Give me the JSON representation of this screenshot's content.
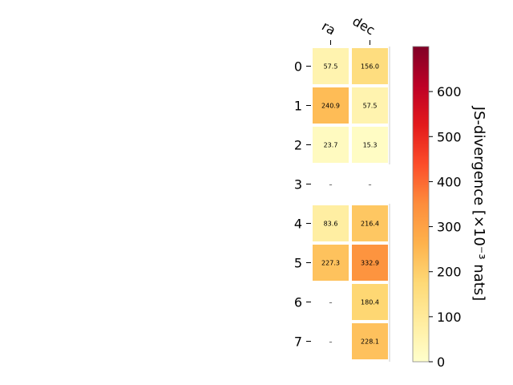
{
  "chart_data": {
    "type": "heatmap",
    "title": "",
    "columns": [
      "ra",
      "dec"
    ],
    "rows": [
      "0",
      "1",
      "2",
      "3",
      "4",
      "5",
      "6",
      "7"
    ],
    "values": [
      [
        57.5,
        156.0
      ],
      [
        240.9,
        57.5
      ],
      [
        23.7,
        15.3
      ],
      [
        null,
        null
      ],
      [
        83.6,
        216.4
      ],
      [
        227.3,
        332.9
      ],
      [
        null,
        180.4
      ],
      [
        null,
        228.1
      ]
    ],
    "cell_labels": [
      [
        "57.5",
        "156.0"
      ],
      [
        "240.9",
        "57.5"
      ],
      [
        "23.7",
        "15.3"
      ],
      [
        "–",
        "–"
      ],
      [
        "83.6",
        "216.4"
      ],
      [
        "227.3",
        "332.9"
      ],
      [
        "–",
        "180.4"
      ],
      [
        "–",
        "228.1"
      ]
    ],
    "colorbar": {
      "label": "JS-divergence [×10⁻³ nats]",
      "vmin": 0,
      "vmax": 700,
      "ticks": [
        "0",
        "100",
        "200",
        "300",
        "400",
        "500",
        "600"
      ],
      "colormap": "YlOrRd"
    }
  }
}
